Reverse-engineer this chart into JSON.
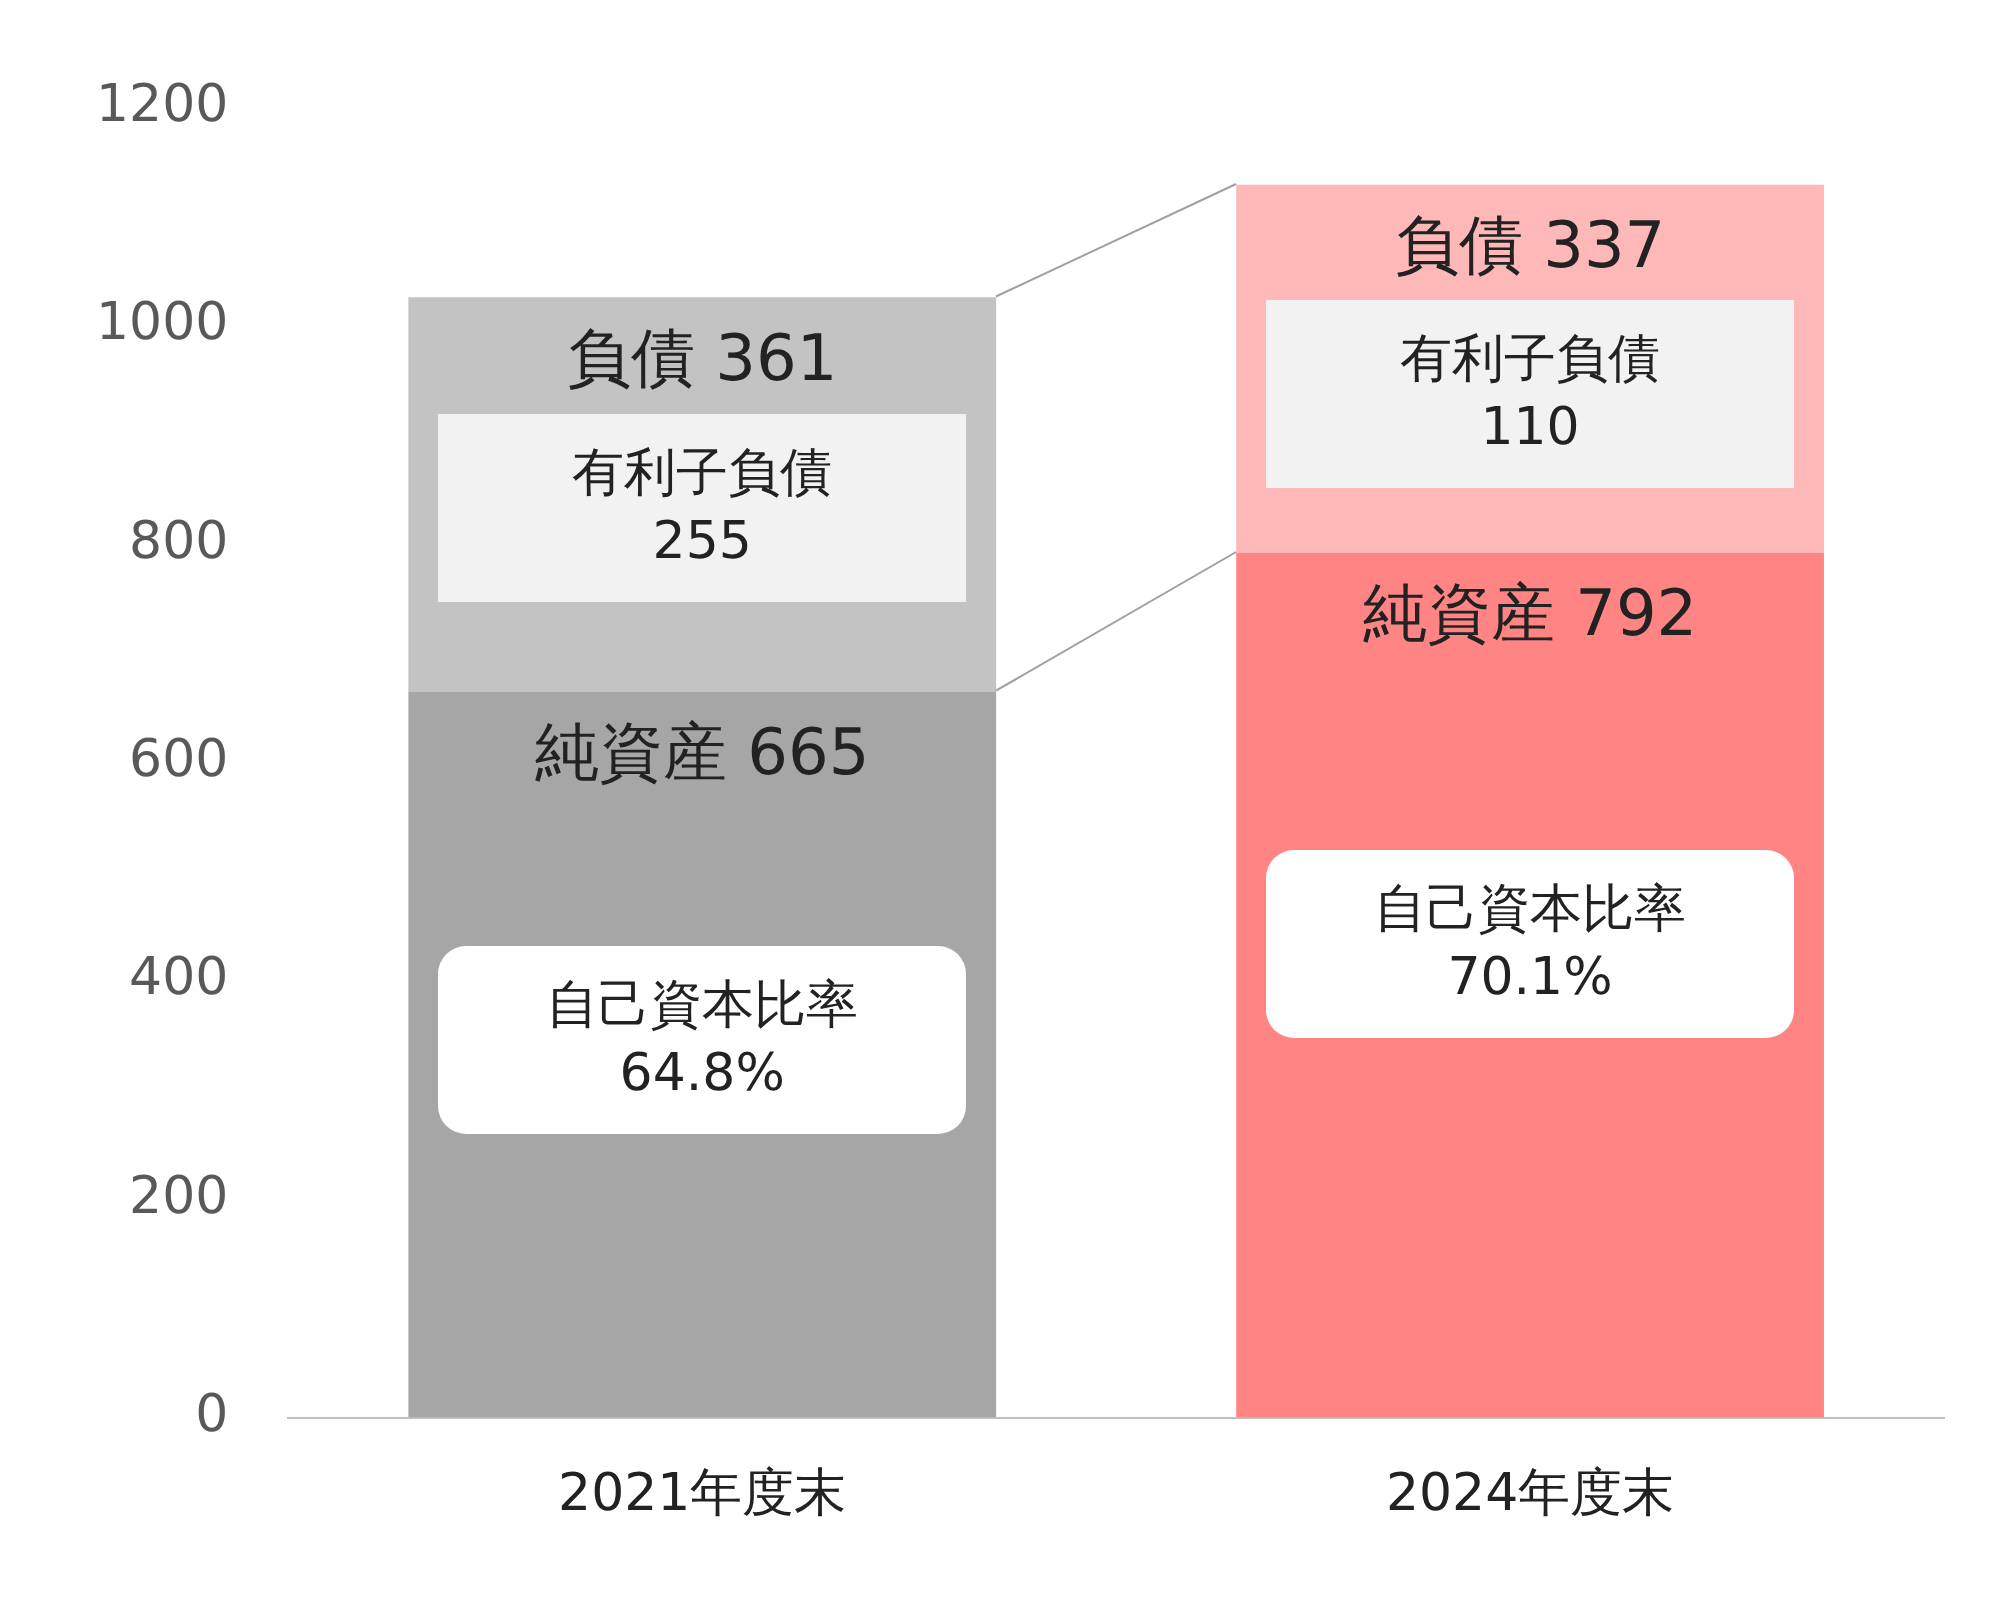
{
  "chart_data": {
    "type": "bar",
    "stacked": true,
    "categories": [
      "2021年度末",
      "2024年度末"
    ],
    "series": [
      {
        "name": "純資産",
        "colors": [
          "#a6a6a6",
          "#ff8585"
        ],
        "values": [
          665,
          792
        ]
      },
      {
        "name": "負債",
        "colors": [
          "#c3c3c3",
          "#ffb8b8"
        ],
        "values": [
          361,
          337
        ]
      }
    ],
    "data_labels": true,
    "ylim": [
      0,
      1200
    ],
    "yticks": [
      0,
      200,
      400,
      600,
      800,
      1000,
      1200
    ],
    "grid": false,
    "annotations": [
      "有利子負債\n255",
      "自己資本比率\n64.8%",
      "有利子負債\n110",
      "自己資本比率\n70.1%"
    ]
  }
}
